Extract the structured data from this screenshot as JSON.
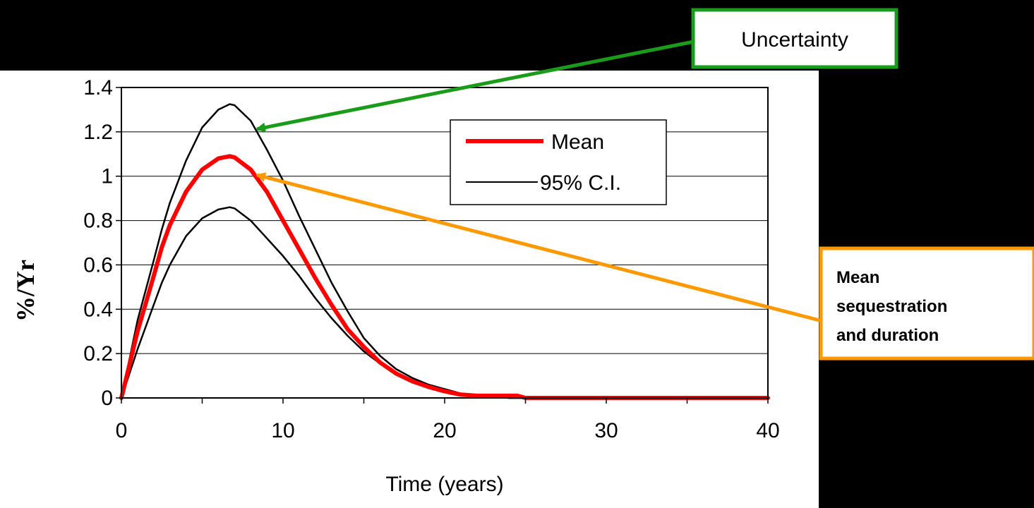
{
  "chart_data": {
    "type": "line",
    "xlabel": "Time (years)",
    "ylabel": "%/Yr",
    "xlim": [
      0,
      40
    ],
    "ylim": [
      0,
      1.4
    ],
    "xticks": [
      "0",
      "10",
      "20",
      "30",
      "40"
    ],
    "yticks": [
      "0",
      "0.2",
      "0.4",
      "0.6",
      "0.8",
      "1",
      "1.2",
      "1.4"
    ],
    "grid": "horizontal",
    "legend_position": "top-right",
    "series": [
      {
        "name": "Mean",
        "color": "#ff0000",
        "x": [
          0,
          1,
          2,
          2.5,
          3,
          4,
          5,
          6,
          6.7,
          7,
          8,
          9,
          10,
          11,
          12,
          13,
          14,
          15,
          16,
          17,
          18,
          19,
          20,
          21,
          22,
          23,
          24,
          24.5,
          25,
          30,
          35,
          40
        ],
        "y": [
          0,
          0.3,
          0.55,
          0.68,
          0.78,
          0.93,
          1.03,
          1.08,
          1.09,
          1.085,
          1.03,
          0.93,
          0.8,
          0.67,
          0.54,
          0.42,
          0.31,
          0.23,
          0.16,
          0.11,
          0.075,
          0.05,
          0.03,
          0.015,
          0.01,
          0.01,
          0.01,
          0.01,
          0,
          0,
          0,
          0
        ]
      },
      {
        "name": "95% C.I.",
        "color": "#000000",
        "x": [
          0,
          1,
          2,
          2.5,
          3,
          4,
          5,
          6,
          6.7,
          7,
          8,
          9,
          10,
          11,
          12,
          13,
          14,
          15,
          16,
          17,
          18,
          19,
          20,
          21,
          22,
          23,
          24,
          25,
          30,
          35,
          40
        ],
        "y": [
          0,
          0.35,
          0.62,
          0.76,
          0.88,
          1.07,
          1.22,
          1.3,
          1.325,
          1.32,
          1.25,
          1.12,
          0.98,
          0.82,
          0.67,
          0.52,
          0.39,
          0.27,
          0.19,
          0.13,
          0.09,
          0.06,
          0.04,
          0.02,
          0.01,
          0.005,
          0,
          0,
          0,
          0,
          0
        ]
      },
      {
        "name": "",
        "color": "#000000",
        "x": [
          0,
          1,
          2,
          2.5,
          3,
          4,
          5,
          6,
          6.7,
          7,
          8,
          9,
          10,
          11,
          12,
          13,
          14,
          15,
          16,
          17,
          18,
          19,
          20,
          21,
          22,
          23,
          24,
          25,
          30,
          35,
          40
        ],
        "y": [
          0,
          0.22,
          0.42,
          0.52,
          0.6,
          0.73,
          0.81,
          0.85,
          0.86,
          0.855,
          0.8,
          0.72,
          0.64,
          0.55,
          0.45,
          0.36,
          0.28,
          0.21,
          0.155,
          0.11,
          0.075,
          0.05,
          0.03,
          0.015,
          0.008,
          0.004,
          0,
          0,
          0,
          0,
          0
        ]
      }
    ]
  },
  "legend": {
    "items": [
      {
        "label": "Mean",
        "color": "#ff0000"
      },
      {
        "label": "95% C.I.",
        "color": "#000000"
      }
    ]
  },
  "callouts": {
    "uncertainty": {
      "label": "Uncertainty",
      "color": "#1a9c1a"
    },
    "mean": {
      "lines": [
        "Mean",
        "sequestration",
        "and duration"
      ],
      "color": "#ff9900"
    }
  }
}
